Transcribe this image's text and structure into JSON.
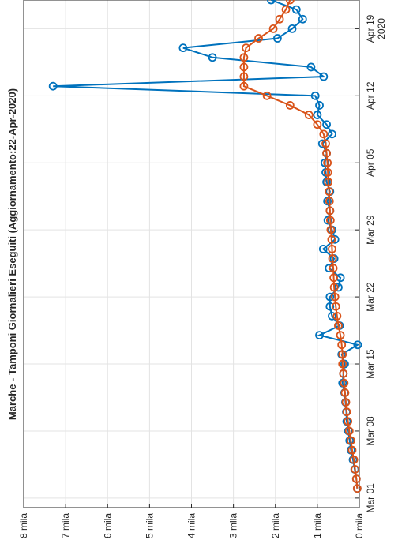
{
  "chart_data": {
    "type": "line",
    "title": "Marche - Tamponi Giornalieri Eseguiti (Aggiornamento:22-Apr-2020)",
    "x": [
      "2020-03-02",
      "2020-03-03",
      "2020-03-04",
      "2020-03-05",
      "2020-03-06",
      "2020-03-07",
      "2020-03-08",
      "2020-03-09",
      "2020-03-10",
      "2020-03-11",
      "2020-03-12",
      "2020-03-13",
      "2020-03-14",
      "2020-03-15",
      "2020-03-16",
      "2020-03-17",
      "2020-03-18",
      "2020-03-19",
      "2020-03-20",
      "2020-03-21",
      "2020-03-22",
      "2020-03-23",
      "2020-03-24",
      "2020-03-25",
      "2020-03-26",
      "2020-03-27",
      "2020-03-28",
      "2020-03-29",
      "2020-03-30",
      "2020-03-31",
      "2020-04-01",
      "2020-04-02",
      "2020-04-03",
      "2020-04-04",
      "2020-04-05",
      "2020-04-06",
      "2020-04-07",
      "2020-04-08",
      "2020-04-09",
      "2020-04-10",
      "2020-04-11",
      "2020-04-12",
      "2020-04-13",
      "2020-04-14",
      "2020-04-15",
      "2020-04-16",
      "2020-04-17",
      "2020-04-18",
      "2020-04-19",
      "2020-04-20",
      "2020-04-21",
      "2020-04-22"
    ],
    "series": [
      {
        "color": "#0072BD",
        "values": [
          50,
          70,
          110,
          150,
          200,
          230,
          260,
          300,
          310,
          330,
          350,
          400,
          380,
          350,
          420,
          40,
          950,
          470,
          650,
          700,
          700,
          500,
          450,
          720,
          600,
          860,
          580,
          650,
          750,
          700,
          760,
          700,
          780,
          800,
          820,
          780,
          880,
          650,
          780,
          1000,
          950,
          1050,
          7300,
          850,
          1150,
          3500,
          4200,
          1950,
          1600,
          1350,
          1500,
          2100
        ]
      },
      {
        "color": "#D95319",
        "values": [
          50,
          70,
          100,
          130,
          170,
          200,
          240,
          270,
          300,
          320,
          340,
          360,
          380,
          400,
          400,
          420,
          450,
          500,
          530,
          560,
          580,
          600,
          610,
          620,
          640,
          650,
          660,
          680,
          690,
          700,
          710,
          720,
          740,
          750,
          760,
          780,
          800,
          850,
          1000,
          1200,
          1650,
          2200,
          2750,
          2750,
          2750,
          2750,
          2700,
          2400,
          2050,
          1900,
          1750,
          1650
        ]
      }
    ],
    "xlim": [
      "2020-02-29",
      "2020-04-22"
    ],
    "xticks": [
      {
        "value": "2020-03-01",
        "label": "Mar 01"
      },
      {
        "value": "2020-03-08",
        "label": "Mar 08"
      },
      {
        "value": "2020-03-15",
        "label": "Mar 15"
      },
      {
        "value": "2020-03-22",
        "label": "Mar 22"
      },
      {
        "value": "2020-03-29",
        "label": "Mar 29"
      },
      {
        "value": "2020-04-05",
        "label": "Apr 05"
      },
      {
        "value": "2020-04-12",
        "label": "Apr 12"
      },
      {
        "value": "2020-04-19",
        "label": "Apr 19"
      }
    ],
    "x_year_label": "2020",
    "ylim": [
      0,
      8000
    ],
    "yticks": [
      {
        "value": 0,
        "label": "0 mila"
      },
      {
        "value": 1000,
        "label": "1 mila"
      },
      {
        "value": 2000,
        "label": "2 mila"
      },
      {
        "value": 3000,
        "label": "3 mila"
      },
      {
        "value": 4000,
        "label": "4 mila"
      },
      {
        "value": 5000,
        "label": "5 mila"
      },
      {
        "value": 6000,
        "label": "6 mila"
      },
      {
        "value": 7000,
        "label": "7 mila"
      },
      {
        "value": 8000,
        "label": "8 mila"
      }
    ],
    "grid": true
  }
}
